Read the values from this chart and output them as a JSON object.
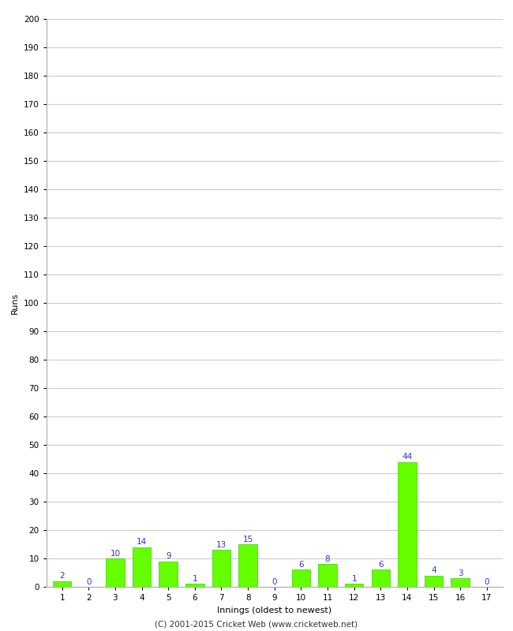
{
  "xlabel": "Innings (oldest to newest)",
  "ylabel": "Runs",
  "categories": [
    1,
    2,
    3,
    4,
    5,
    6,
    7,
    8,
    9,
    10,
    11,
    12,
    13,
    14,
    15,
    16,
    17
  ],
  "values": [
    2,
    0,
    10,
    14,
    9,
    1,
    13,
    15,
    0,
    6,
    8,
    1,
    6,
    44,
    4,
    3,
    0
  ],
  "bar_color": "#66ff00",
  "bar_edge_color": "#33cc00",
  "label_color": "#3333cc",
  "ylim": [
    0,
    200
  ],
  "yticks": [
    0,
    10,
    20,
    30,
    40,
    50,
    60,
    70,
    80,
    90,
    100,
    110,
    120,
    130,
    140,
    150,
    160,
    170,
    180,
    190,
    200
  ],
  "background_color": "#ffffff",
  "grid_color": "#cccccc",
  "footer": "(C) 2001-2015 Cricket Web (www.cricketweb.net)",
  "label_fontsize": 7.5,
  "axis_label_fontsize": 8,
  "tick_fontsize": 7.5,
  "footer_fontsize": 7.5
}
